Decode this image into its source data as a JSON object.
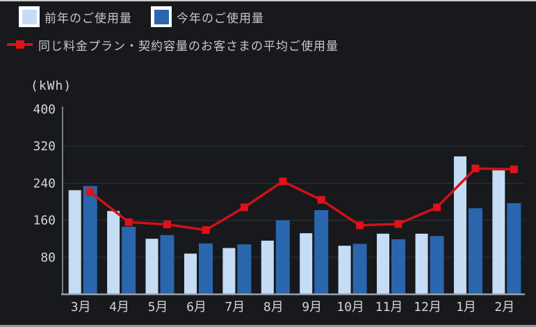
{
  "legend": {
    "prev_year": {
      "label": "前年のご使用量",
      "color": "#c5dcf5"
    },
    "this_year": {
      "label": "今年のご使用量",
      "color": "#2a66ad"
    },
    "average": {
      "label": "同じ料金プラン・契約容量のお客さまの平均ご使用量",
      "color": "#d21017"
    }
  },
  "theme": {
    "background": "#17191d",
    "text": "#c6c8ca",
    "tick_text": "#d2d4d7",
    "grid": "#2f343a",
    "axis": "#9aa0a6",
    "marker_red": "#e01118"
  },
  "chart_data": {
    "type": "bar",
    "categories": [
      "3月",
      "4月",
      "5月",
      "6月",
      "7月",
      "8月",
      "9月",
      "10月",
      "11月",
      "12月",
      "1月",
      "2月"
    ],
    "series": [
      {
        "name": "前年のご使用量",
        "render": "bar",
        "color": "#c5dcf5",
        "values": [
          225,
          180,
          120,
          88,
          100,
          116,
          132,
          105,
          131,
          131,
          298,
          268
        ]
      },
      {
        "name": "今年のご使用量",
        "render": "bar",
        "color": "#2a66ad",
        "values": [
          234,
          146,
          128,
          110,
          108,
          160,
          182,
          109,
          119,
          126,
          186,
          197
        ]
      },
      {
        "name": "同じ料金プラン・契約容量のお客さまの平均ご使用量",
        "render": "line",
        "color": "#d21017",
        "values": [
          221,
          156,
          151,
          139,
          188,
          244,
          204,
          149,
          152,
          188,
          272,
          270
        ]
      }
    ],
    "title": "",
    "xlabel": "",
    "ylabel": "(kWh)",
    "ylim": [
      0,
      400
    ],
    "yticks": [
      80,
      160,
      240,
      320,
      400
    ],
    "grid": true,
    "legend_position": "top-left"
  }
}
